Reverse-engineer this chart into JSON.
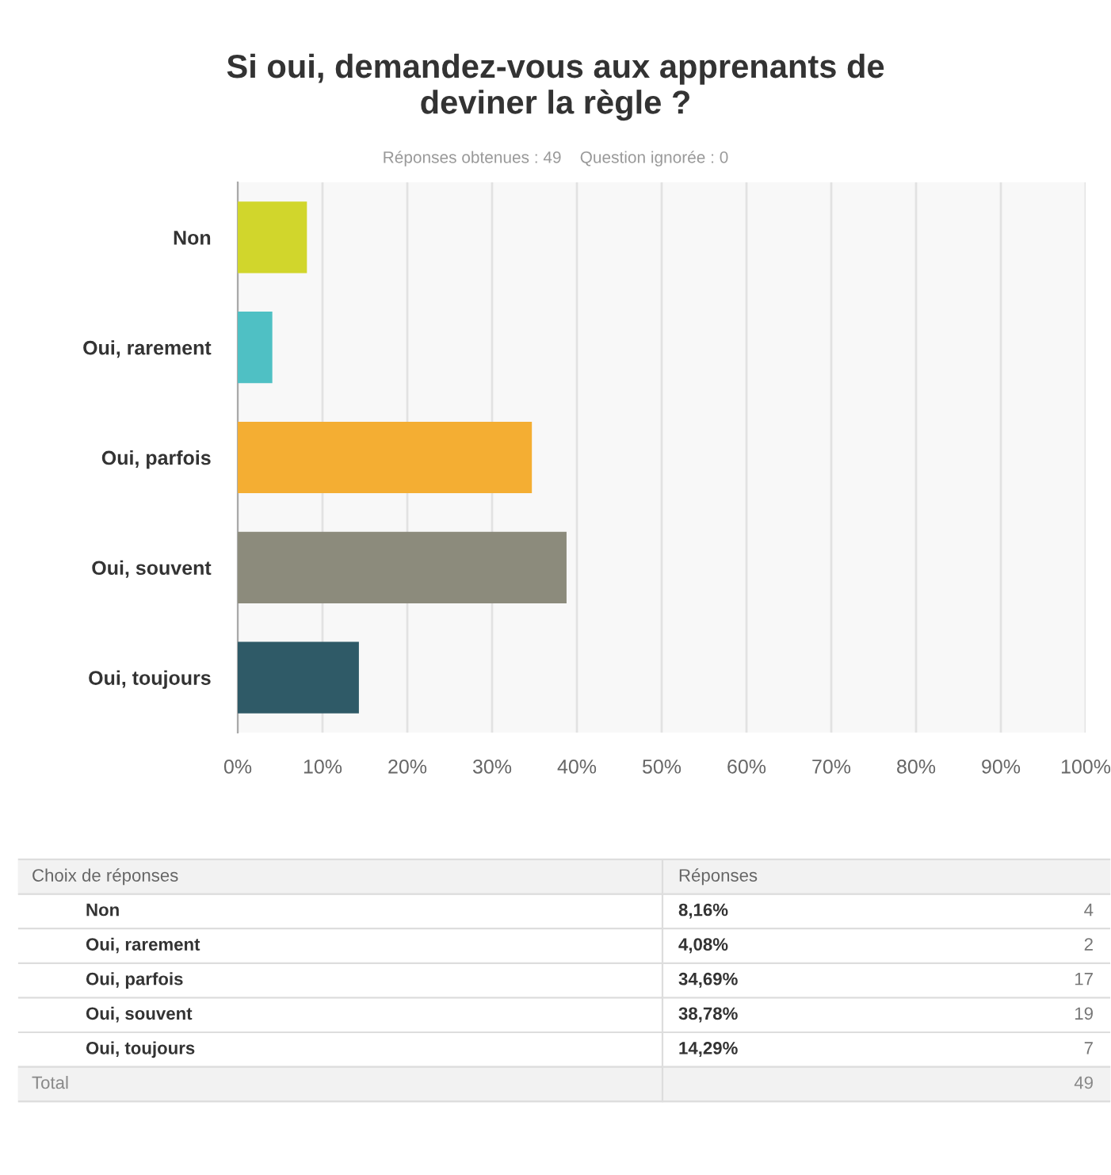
{
  "chart_data": {
    "type": "bar",
    "orientation": "horizontal",
    "title": "Si oui, demandez-vous aux apprenants de\ndeviner la règle ?",
    "subtitle": "Réponses obtenues : 49    Question ignorée : 0",
    "categories": [
      "Non",
      "Oui, rarement",
      "Oui, parfois",
      "Oui, souvent",
      "Oui, toujours"
    ],
    "values": [
      8.16,
      4.08,
      34.69,
      38.78,
      14.29
    ],
    "colors": [
      "#d1d62c",
      "#4fc0c4",
      "#f4ae33",
      "#8c8b7c",
      "#2f5a67"
    ],
    "xlim": [
      0,
      100
    ],
    "xticks": [
      {
        "value": 0,
        "label": "0%"
      },
      {
        "value": 10,
        "label": "10%"
      },
      {
        "value": 20,
        "label": "20%"
      },
      {
        "value": 30,
        "label": "30%"
      },
      {
        "value": 40,
        "label": "40%"
      },
      {
        "value": 50,
        "label": "50%"
      },
      {
        "value": 60,
        "label": "60%"
      },
      {
        "value": 70,
        "label": "70%"
      },
      {
        "value": 80,
        "label": "80%"
      },
      {
        "value": 90,
        "label": "90%"
      },
      {
        "value": 100,
        "label": "100%"
      }
    ],
    "grid": "x",
    "annotations": [
      "Choix de réponses",
      "Réponses",
      "8,16%",
      "4,08%",
      "34,69%",
      "38,78%",
      "14,29%",
      "4",
      "2",
      "17",
      "19",
      "7",
      "Total",
      "49"
    ]
  }
}
